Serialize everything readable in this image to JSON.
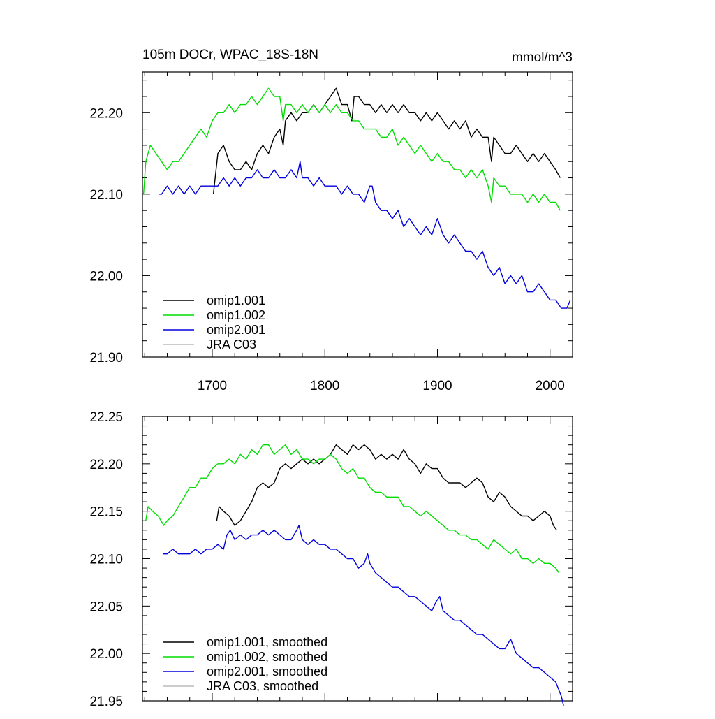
{
  "figure": {
    "title": "105m DOCr, WPAC_18S-18N",
    "units": "mmol/m^3"
  },
  "colors": {
    "omip1.001": "#000000",
    "omip1.002": "#00dd00",
    "omip2.001": "#0000dd",
    "JRA C03": "#bbbbbb"
  },
  "chart_data": [
    {
      "type": "line",
      "panel": "top",
      "xlim": [
        1638,
        2020
      ],
      "ylim": [
        21.9,
        22.25
      ],
      "x_ticks": [
        1700,
        1800,
        1900,
        2000
      ],
      "x_tick_labels": [
        "1700",
        "1800",
        "1900",
        "2000"
      ],
      "y_ticks": [
        21.9,
        22.0,
        22.1,
        22.2
      ],
      "y_tick_labels": [
        "21.90",
        "22.00",
        "22.10",
        "22.20"
      ],
      "legend_position": "bottom-left",
      "series": [
        {
          "name": "omip1.001",
          "color": "#000000",
          "x": [
            1701,
            1705,
            1710,
            1715,
            1720,
            1725,
            1730,
            1735,
            1740,
            1745,
            1750,
            1755,
            1760,
            1763,
            1765,
            1770,
            1775,
            1780,
            1785,
            1790,
            1795,
            1800,
            1805,
            1810,
            1815,
            1820,
            1824,
            1826,
            1830,
            1835,
            1840,
            1845,
            1850,
            1855,
            1860,
            1865,
            1870,
            1875,
            1880,
            1885,
            1890,
            1895,
            1900,
            1905,
            1910,
            1915,
            1920,
            1925,
            1930,
            1935,
            1940,
            1945,
            1948,
            1950,
            1955,
            1960,
            1965,
            1970,
            1975,
            1980,
            1985,
            1990,
            1995,
            2000,
            2005,
            2009
          ],
          "y": [
            22.1,
            22.15,
            22.16,
            22.14,
            22.13,
            22.13,
            22.14,
            22.13,
            22.15,
            22.16,
            22.15,
            22.17,
            22.18,
            22.16,
            22.19,
            22.2,
            22.19,
            22.2,
            22.2,
            22.21,
            22.2,
            22.21,
            22.22,
            22.23,
            22.21,
            22.21,
            22.19,
            22.22,
            22.22,
            22.21,
            22.21,
            22.2,
            22.21,
            22.2,
            22.21,
            22.2,
            22.21,
            22.2,
            22.2,
            22.19,
            22.2,
            22.19,
            22.2,
            22.19,
            22.18,
            22.19,
            22.18,
            22.19,
            22.17,
            22.18,
            22.17,
            22.17,
            22.14,
            22.17,
            22.16,
            22.15,
            22.15,
            22.16,
            22.15,
            22.14,
            22.15,
            22.14,
            22.15,
            22.14,
            22.13,
            22.12
          ]
        },
        {
          "name": "omip1.002",
          "color": "#00dd00",
          "x": [
            1639,
            1641,
            1645,
            1650,
            1655,
            1660,
            1665,
            1670,
            1675,
            1680,
            1685,
            1690,
            1695,
            1700,
            1705,
            1710,
            1715,
            1720,
            1725,
            1730,
            1735,
            1740,
            1745,
            1750,
            1755,
            1760,
            1763,
            1765,
            1770,
            1775,
            1780,
            1785,
            1790,
            1795,
            1800,
            1805,
            1810,
            1815,
            1820,
            1825,
            1830,
            1835,
            1840,
            1845,
            1850,
            1855,
            1860,
            1865,
            1870,
            1875,
            1880,
            1885,
            1890,
            1895,
            1900,
            1905,
            1910,
            1915,
            1920,
            1925,
            1930,
            1935,
            1940,
            1945,
            1948,
            1950,
            1955,
            1960,
            1965,
            1970,
            1975,
            1980,
            1985,
            1990,
            1995,
            2000,
            2005,
            2009
          ],
          "y": [
            22.1,
            22.14,
            22.16,
            22.15,
            22.14,
            22.13,
            22.14,
            22.14,
            22.15,
            22.16,
            22.17,
            22.18,
            22.17,
            22.19,
            22.2,
            22.2,
            22.21,
            22.2,
            22.21,
            22.21,
            22.22,
            22.21,
            22.22,
            22.23,
            22.22,
            22.22,
            22.19,
            22.21,
            22.21,
            22.2,
            22.21,
            22.2,
            22.21,
            22.2,
            22.21,
            22.2,
            22.21,
            22.2,
            22.2,
            22.19,
            22.19,
            22.18,
            22.18,
            22.18,
            22.17,
            22.17,
            22.18,
            22.16,
            22.17,
            22.16,
            22.15,
            22.16,
            22.15,
            22.14,
            22.15,
            22.14,
            22.14,
            22.13,
            22.13,
            22.12,
            22.13,
            22.12,
            22.13,
            22.11,
            22.09,
            22.12,
            22.11,
            22.11,
            22.1,
            22.1,
            22.1,
            22.09,
            22.1,
            22.09,
            22.1,
            22.09,
            22.09,
            22.08
          ]
        },
        {
          "name": "omip2.001",
          "color": "#0000dd",
          "x": [
            1653,
            1655,
            1660,
            1665,
            1670,
            1675,
            1680,
            1685,
            1690,
            1695,
            1700,
            1705,
            1710,
            1715,
            1720,
            1725,
            1730,
            1735,
            1740,
            1745,
            1750,
            1755,
            1760,
            1765,
            1770,
            1775,
            1778,
            1780,
            1785,
            1790,
            1795,
            1800,
            1805,
            1810,
            1815,
            1820,
            1825,
            1830,
            1835,
            1840,
            1842,
            1845,
            1850,
            1855,
            1860,
            1865,
            1870,
            1875,
            1880,
            1885,
            1890,
            1895,
            1900,
            1905,
            1910,
            1915,
            1920,
            1925,
            1930,
            1935,
            1940,
            1945,
            1950,
            1955,
            1960,
            1965,
            1970,
            1975,
            1980,
            1985,
            1990,
            1995,
            2000,
            2005,
            2010,
            2015,
            2018
          ],
          "y": [
            22.1,
            22.1,
            22.11,
            22.1,
            22.11,
            22.1,
            22.11,
            22.1,
            22.11,
            22.11,
            22.11,
            22.11,
            22.12,
            22.11,
            22.12,
            22.11,
            22.12,
            22.12,
            22.13,
            22.12,
            22.12,
            22.13,
            22.12,
            22.12,
            22.13,
            22.12,
            22.14,
            22.12,
            22.12,
            22.11,
            22.12,
            22.11,
            22.11,
            22.11,
            22.1,
            22.11,
            22.1,
            22.1,
            22.09,
            22.11,
            22.11,
            22.09,
            22.08,
            22.08,
            22.07,
            22.08,
            22.06,
            22.07,
            22.06,
            22.05,
            22.06,
            22.05,
            22.07,
            22.05,
            22.04,
            22.05,
            22.04,
            22.03,
            22.03,
            22.02,
            22.03,
            22.01,
            22.0,
            22.01,
            21.99,
            22.0,
            21.99,
            22.0,
            21.98,
            21.98,
            21.99,
            21.98,
            21.97,
            21.97,
            21.96,
            21.96,
            21.97
          ]
        },
        {
          "name": "JRA C03",
          "color": "#bbbbbb",
          "x": [],
          "y": []
        }
      ]
    },
    {
      "type": "line",
      "panel": "bottom",
      "xlim": [
        1638,
        2020
      ],
      "ylim": [
        21.95,
        22.25
      ],
      "x_ticks": [
        1700,
        1800,
        1900,
        2000
      ],
      "y_ticks": [
        21.95,
        22.0,
        22.05,
        22.1,
        22.15,
        22.2,
        22.25
      ],
      "y_tick_labels": [
        "21.95",
        "22.00",
        "22.05",
        "22.10",
        "22.15",
        "22.20",
        "22.25"
      ],
      "legend_position": "bottom-left",
      "series": [
        {
          "name": "omip1.001, smoothed",
          "color": "#000000",
          "x": [
            1704,
            1706,
            1710,
            1715,
            1720,
            1725,
            1730,
            1735,
            1740,
            1745,
            1750,
            1755,
            1760,
            1765,
            1770,
            1775,
            1780,
            1785,
            1790,
            1795,
            1800,
            1805,
            1810,
            1815,
            1820,
            1825,
            1830,
            1835,
            1840,
            1845,
            1850,
            1855,
            1860,
            1865,
            1870,
            1875,
            1880,
            1885,
            1890,
            1895,
            1900,
            1905,
            1910,
            1915,
            1920,
            1925,
            1930,
            1935,
            1940,
            1945,
            1950,
            1955,
            1960,
            1965,
            1970,
            1975,
            1980,
            1985,
            1990,
            1995,
            2000,
            2003,
            2006
          ],
          "y": [
            22.14,
            22.155,
            22.15,
            22.145,
            22.135,
            22.14,
            22.15,
            22.16,
            22.175,
            22.18,
            22.175,
            22.18,
            22.195,
            22.2,
            22.195,
            22.2,
            22.205,
            22.2,
            22.205,
            22.2,
            22.205,
            22.21,
            22.22,
            22.215,
            22.21,
            22.22,
            22.215,
            22.22,
            22.215,
            22.205,
            22.21,
            22.205,
            22.21,
            22.205,
            22.215,
            22.205,
            22.2,
            22.19,
            22.2,
            22.195,
            22.195,
            22.185,
            22.18,
            22.18,
            22.18,
            22.175,
            22.18,
            22.185,
            22.18,
            22.165,
            22.16,
            22.17,
            22.165,
            22.155,
            22.15,
            22.145,
            22.145,
            22.14,
            22.145,
            22.15,
            22.145,
            22.135,
            22.13
          ]
        },
        {
          "name": "omip1.002, smoothed",
          "color": "#00dd00",
          "x": [
            1641,
            1643,
            1647,
            1652,
            1657,
            1660,
            1665,
            1670,
            1675,
            1680,
            1685,
            1690,
            1695,
            1700,
            1705,
            1710,
            1715,
            1720,
            1725,
            1730,
            1735,
            1740,
            1745,
            1750,
            1755,
            1760,
            1765,
            1770,
            1775,
            1780,
            1785,
            1790,
            1795,
            1800,
            1805,
            1810,
            1815,
            1820,
            1825,
            1830,
            1835,
            1840,
            1845,
            1850,
            1855,
            1860,
            1865,
            1870,
            1875,
            1880,
            1885,
            1890,
            1895,
            1900,
            1905,
            1910,
            1915,
            1920,
            1925,
            1930,
            1935,
            1940,
            1945,
            1950,
            1955,
            1960,
            1965,
            1970,
            1975,
            1980,
            1985,
            1990,
            1995,
            2000,
            2005,
            2008
          ],
          "y": [
            22.14,
            22.155,
            22.15,
            22.145,
            22.135,
            22.14,
            22.145,
            22.155,
            22.165,
            22.175,
            22.175,
            22.185,
            22.185,
            22.195,
            22.2,
            22.2,
            22.205,
            22.2,
            22.21,
            22.205,
            22.215,
            22.21,
            22.22,
            22.22,
            22.21,
            22.215,
            22.22,
            22.21,
            22.215,
            22.205,
            22.205,
            22.2,
            22.205,
            22.205,
            22.21,
            22.205,
            22.195,
            22.19,
            22.195,
            22.185,
            22.185,
            22.175,
            22.17,
            22.17,
            22.165,
            22.165,
            22.165,
            22.155,
            22.155,
            22.15,
            22.145,
            22.15,
            22.145,
            22.14,
            22.135,
            22.13,
            22.13,
            22.125,
            22.125,
            22.12,
            22.12,
            22.115,
            22.11,
            22.12,
            22.115,
            22.11,
            22.105,
            22.11,
            22.1,
            22.1,
            22.095,
            22.1,
            22.095,
            22.095,
            22.09,
            22.085
          ]
        },
        {
          "name": "omip2.001, smoothed",
          "color": "#0000dd",
          "x": [
            1656,
            1660,
            1665,
            1670,
            1675,
            1680,
            1685,
            1690,
            1695,
            1700,
            1705,
            1710,
            1713,
            1716,
            1720,
            1725,
            1730,
            1735,
            1740,
            1745,
            1750,
            1755,
            1760,
            1765,
            1770,
            1775,
            1777,
            1780,
            1785,
            1790,
            1795,
            1800,
            1805,
            1810,
            1815,
            1820,
            1825,
            1830,
            1835,
            1838,
            1840,
            1845,
            1850,
            1855,
            1860,
            1865,
            1870,
            1875,
            1880,
            1885,
            1890,
            1895,
            1899,
            1902,
            1905,
            1910,
            1915,
            1920,
            1925,
            1930,
            1935,
            1940,
            1945,
            1950,
            1955,
            1960,
            1965,
            1970,
            1975,
            1980,
            1985,
            1990,
            1995,
            2000,
            2005,
            2010,
            2012
          ],
          "y": [
            22.105,
            22.105,
            22.11,
            22.105,
            22.105,
            22.105,
            22.11,
            22.105,
            22.11,
            22.11,
            22.115,
            22.11,
            22.125,
            22.13,
            22.12,
            22.125,
            22.12,
            22.125,
            22.125,
            22.13,
            22.125,
            22.13,
            22.125,
            22.12,
            22.12,
            22.13,
            22.135,
            22.12,
            22.115,
            22.12,
            22.115,
            22.115,
            22.11,
            22.11,
            22.105,
            22.1,
            22.1,
            22.09,
            22.095,
            22.105,
            22.095,
            22.085,
            22.08,
            22.075,
            22.07,
            22.07,
            22.065,
            22.06,
            22.06,
            22.055,
            22.05,
            22.045,
            22.055,
            22.06,
            22.045,
            22.04,
            22.035,
            22.035,
            22.03,
            22.025,
            22.02,
            22.02,
            22.015,
            22.01,
            22.005,
            22.005,
            22.015,
            22.0,
            21.995,
            21.99,
            21.985,
            21.985,
            21.98,
            21.975,
            21.97,
            21.955,
            21.945
          ]
        },
        {
          "name": "JRA C03, smoothed",
          "color": "#bbbbbb",
          "x": [],
          "y": []
        }
      ]
    }
  ]
}
